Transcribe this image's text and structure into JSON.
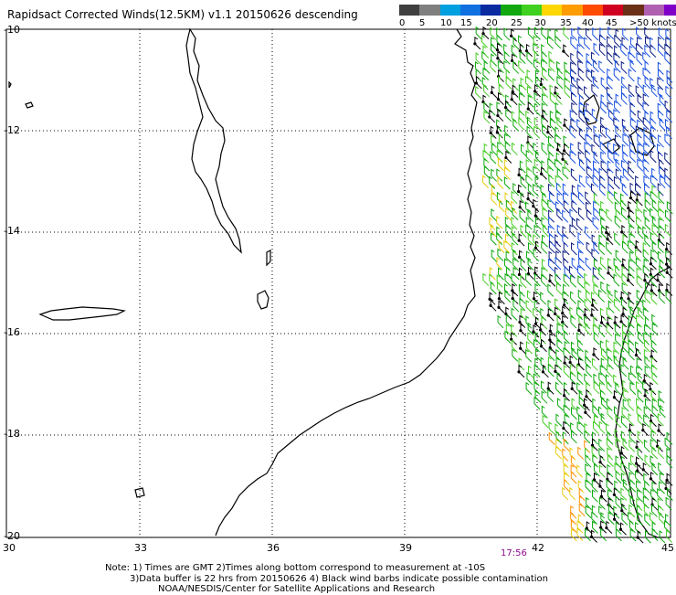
{
  "title": "Rapidsact Corrected Winds(12.5KM) v1.1 20150626 descending",
  "legend": {
    "colors": [
      "#3f3f3f",
      "#7f7f7f",
      "#00a0e0",
      "#1070e0",
      "#0a2aa0",
      "#11a810",
      "#40d020",
      "#ffd700",
      "#ff9c00",
      "#ff4a00",
      "#d00020",
      "#6a3018",
      "#b060b0",
      "#8000c8",
      "#3a0060"
    ],
    "labels": [
      "0",
      "5",
      "10",
      "15",
      "20",
      "25",
      "30",
      "35",
      "40",
      "45",
      ">50 knots"
    ]
  },
  "axes": {
    "lat_labels": [
      "-10",
      "-12",
      "-14",
      "-16",
      "-18",
      "-20"
    ],
    "lon_labels": [
      "30",
      "33",
      "36",
      "39",
      "42",
      "45"
    ]
  },
  "time_label": "17:56",
  "notes": [
    "Note: 1) Times are GMT 2)Times along bottom correspond to measurement at -10S",
    "3)Data buffer is 22 hrs from 20150626 4) Black wind barbs indicate possible contamination",
    "NOAA/NESDIS/Center for Satellite Applications and Research"
  ],
  "barb_colors": {
    "green": "#0ca80c",
    "light_green": "#44cc22",
    "yellow": "#e8cc10",
    "orange": "#ff9000",
    "blue": "#1850e0",
    "navy": "#0a1a80",
    "black": "#000000"
  }
}
